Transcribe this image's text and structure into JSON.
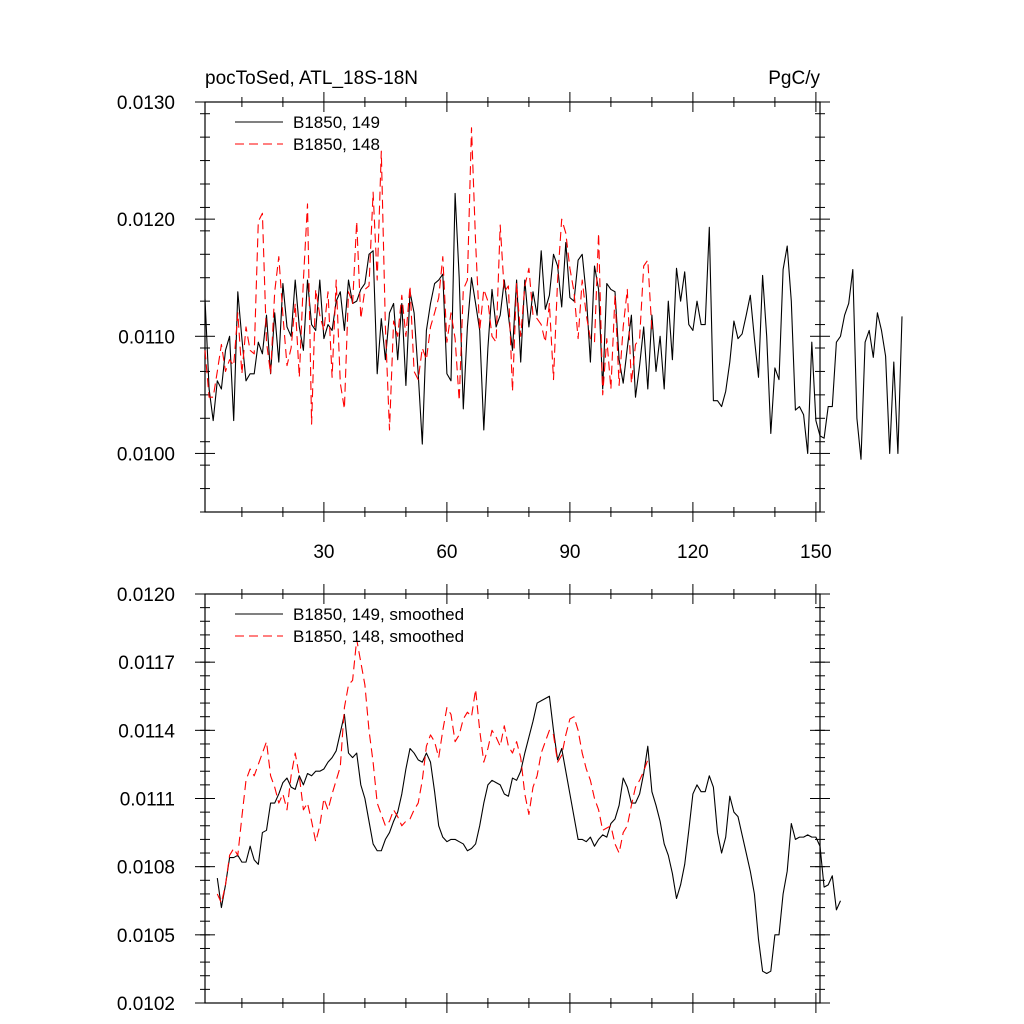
{
  "chart_data": [
    {
      "type": "line",
      "title_left": "pocToSed, ATL_18S-18N",
      "title_right": "PgC/y",
      "xlim": [
        1,
        151
      ],
      "ylim": [
        0.0095,
        0.013
      ],
      "xticks": [
        30,
        60,
        90,
        120,
        150
      ],
      "xtick_labels": [
        "30",
        "60",
        "90",
        "120",
        "150"
      ],
      "yticks": [
        0.01,
        0.011,
        0.012,
        0.013
      ],
      "ytick_labels": [
        "0.0100",
        "0.0110",
        "0.0120",
        "0.0130"
      ],
      "legend_position": "top-left",
      "series": [
        {
          "name": "B1850, 149",
          "color": "#000000",
          "dash": "solid",
          "x_start": 1,
          "values": [
            0.01132,
            0.01055,
            0.01028,
            0.01062,
            0.01055,
            0.01088,
            0.011,
            0.01028,
            0.01138,
            0.01098,
            0.01062,
            0.01068,
            0.01068,
            0.01095,
            0.01085,
            0.01118,
            0.01068,
            0.0112,
            0.01078,
            0.01145,
            0.01108,
            0.011,
            0.01148,
            0.01108,
            0.01088,
            0.01148,
            0.0111,
            0.01105,
            0.01148,
            0.01098,
            0.0111,
            0.01105,
            0.0113,
            0.01138,
            0.01105,
            0.01148,
            0.01128,
            0.0113,
            0.0114,
            0.01145,
            0.0117,
            0.01173,
            0.01068,
            0.01115,
            0.0108,
            0.0112,
            0.01128,
            0.0108,
            0.01128,
            0.01058,
            0.01138,
            0.0112,
            0.01068,
            0.01008,
            0.01105,
            0.01128,
            0.01145,
            0.01148,
            0.01153,
            0.01068,
            0.01062,
            0.01222,
            0.0115,
            0.01038,
            0.01108,
            0.0115,
            0.01128,
            0.01105,
            0.0102,
            0.0109,
            0.0114,
            0.01108,
            0.01118,
            0.01148,
            0.01118,
            0.01088,
            0.01148,
            0.01078,
            0.01148,
            0.01108,
            0.01138,
            0.01118,
            0.01173,
            0.01123,
            0.01135,
            0.0117,
            0.0116,
            0.01125,
            0.0118,
            0.01133,
            0.0113,
            0.01165,
            0.0117,
            0.01135,
            0.01078,
            0.0116,
            0.0114,
            0.01055,
            0.01145,
            0.0114,
            0.01138,
            0.0108,
            0.0106,
            0.0109,
            0.01118,
            0.01048,
            0.01075,
            0.01108,
            0.01055,
            0.01118,
            0.0107,
            0.011,
            0.01055,
            0.0113,
            0.0108,
            0.01158,
            0.0113,
            0.01155,
            0.0111,
            0.01105,
            0.0113,
            0.0111,
            0.0111,
            0.01193,
            0.01045,
            0.01045,
            0.0104,
            0.01053,
            0.01078,
            0.01113,
            0.01098,
            0.01102,
            0.01118,
            0.01135,
            0.01098,
            0.01065,
            0.01152,
            0.011,
            0.01017,
            0.01073,
            0.01063,
            0.01157,
            0.01177,
            0.0113,
            0.01037,
            0.0104,
            0.01033,
            0.01,
            0.01095,
            0.01028,
            0.01015,
            0.01013,
            0.0104,
            0.0104,
            0.01095,
            0.011,
            0.01118,
            0.01128,
            0.01157,
            0.0103,
            0.00995,
            0.01095,
            0.01105,
            0.01082,
            0.0112,
            0.01105,
            0.01083,
            0.01,
            0.01078,
            0.01,
            0.01117
          ]
        },
        {
          "name": "B1850, 148",
          "color": "#ff0000",
          "dash": "dashed",
          "x_start": 1,
          "values": [
            0.01088,
            0.01048,
            0.01048,
            0.0107,
            0.01093,
            0.0107,
            0.0108,
            0.01075,
            0.0112,
            0.01068,
            0.01108,
            0.01088,
            0.01085,
            0.01198,
            0.01205,
            0.01095,
            0.01068,
            0.01138,
            0.01168,
            0.01118,
            0.01075,
            0.0109,
            0.01128,
            0.01065,
            0.01148,
            0.01213,
            0.01025,
            0.0114,
            0.01118,
            0.01105,
            0.01138,
            0.01065,
            0.01148,
            0.0106,
            0.01038,
            0.01138,
            0.01128,
            0.01198,
            0.01115,
            0.0114,
            0.01143,
            0.01223,
            0.01148,
            0.01258,
            0.01108,
            0.0102,
            0.01113,
            0.011,
            0.01135,
            0.011,
            0.01143,
            0.0107,
            0.01063,
            0.0109,
            0.0108,
            0.01108,
            0.0112,
            0.01133,
            0.01168,
            0.01095,
            0.0112,
            0.01098,
            0.01045,
            0.0114,
            0.01148,
            0.01278,
            0.0118,
            0.01105,
            0.0114,
            0.0113,
            0.011,
            0.01095,
            0.01195,
            0.01138,
            0.01143,
            0.01053,
            0.01145,
            0.011,
            0.01143,
            0.01158,
            0.01118,
            0.01115,
            0.0111,
            0.01095,
            0.01128,
            0.01063,
            0.01148,
            0.012,
            0.01188,
            0.01158,
            0.01138,
            0.01098,
            0.01148,
            0.01118,
            0.01098,
            0.01095,
            0.01188,
            0.0105,
            0.01098,
            0.01055,
            0.01135,
            0.01058,
            0.01108,
            0.0114,
            0.0106,
            0.01093,
            0.01098,
            0.0116,
            0.01165,
            0.01105
          ]
        }
      ]
    },
    {
      "type": "line",
      "xlim": [
        1,
        151
      ],
      "ylim": [
        0.0102,
        0.012
      ],
      "xticks": [
        30,
        60,
        90,
        120,
        150
      ],
      "yticks": [
        0.0102,
        0.0105,
        0.0108,
        0.0111,
        0.0114,
        0.0117,
        0.012
      ],
      "ytick_labels": [
        "0.0102",
        "0.0105",
        "0.0108",
        "0.0111",
        "0.0114",
        "0.0117",
        "0.0120"
      ],
      "legend_position": "top-left",
      "series": [
        {
          "name": "B1850, 149, smoothed",
          "color": "#000000",
          "dash": "solid",
          "x_start": 4,
          "values": [
            0.01075,
            0.01062,
            0.01072,
            0.01084,
            0.01084,
            0.01085,
            0.01082,
            0.01082,
            0.01089,
            0.01083,
            0.01081,
            0.01095,
            0.01096,
            0.01108,
            0.01108,
            0.01112,
            0.01117,
            0.01119,
            0.01115,
            0.01114,
            0.0112,
            0.01116,
            0.01121,
            0.0112,
            0.01122,
            0.01122,
            0.01123,
            0.01126,
            0.01128,
            0.01131,
            0.01139,
            0.01147,
            0.0113,
            0.01128,
            0.0113,
            0.01116,
            0.0111,
            0.011,
            0.0109,
            0.01087,
            0.01087,
            0.01092,
            0.01095,
            0.011,
            0.01104,
            0.01112,
            0.01123,
            0.01132,
            0.0113,
            0.01127,
            0.01126,
            0.0113,
            0.01126,
            0.01113,
            0.01098,
            0.01093,
            0.01091,
            0.01092,
            0.01092,
            0.01091,
            0.0109,
            0.01087,
            0.01088,
            0.0109,
            0.01098,
            0.01108,
            0.01116,
            0.01118,
            0.01117,
            0.01116,
            0.01112,
            0.01111,
            0.01119,
            0.01118,
            0.01122,
            0.0113,
            0.01137,
            0.01144,
            0.01152,
            0.01153,
            0.01154,
            0.01155,
            0.0114,
            0.01127,
            0.01132,
            0.01122,
            0.01112,
            0.01102,
            0.01092,
            0.01092,
            0.01091,
            0.01093,
            0.01089,
            0.01092,
            0.01094,
            0.01093,
            0.01099,
            0.01101,
            0.01107,
            0.01119,
            0.01115,
            0.01108,
            0.01108,
            0.01112,
            0.01121,
            0.01133,
            0.01113,
            0.01107,
            0.011,
            0.0109,
            0.01085,
            0.01077,
            0.01066,
            0.01072,
            0.01081,
            0.01096,
            0.01112,
            0.01116,
            0.01113,
            0.01113,
            0.0112,
            0.01115,
            0.01095,
            0.01086,
            0.01093,
            0.01111,
            0.01104,
            0.01102,
            0.01094,
            0.01086,
            0.01078,
            0.01068,
            0.01048,
            0.01034,
            0.01033,
            0.01034,
            0.0105,
            0.0105,
            0.01068,
            0.01078,
            0.01099,
            0.01092,
            0.01093,
            0.01093,
            0.01094,
            0.01093,
            0.01093,
            0.01089,
            0.01071,
            0.01072,
            0.01076,
            0.01061,
            0.01065
          ]
        },
        {
          "name": "B1850, 148, smoothed",
          "color": "#ff0000",
          "dash": "dashed",
          "x_start": 4,
          "values": [
            0.01068,
            0.01064,
            0.01072,
            0.01085,
            0.01088,
            0.01085,
            0.01102,
            0.01118,
            0.01123,
            0.0112,
            0.01125,
            0.0113,
            0.01135,
            0.0112,
            0.01115,
            0.01108,
            0.01112,
            0.01105,
            0.0112,
            0.0113,
            0.0112,
            0.01105,
            0.01108,
            0.011,
            0.01091,
            0.01098,
            0.0111,
            0.01105,
            0.01112,
            0.01118,
            0.01124,
            0.0115,
            0.0116,
            0.01162,
            0.0118,
            0.0117,
            0.0116,
            0.0114,
            0.01126,
            0.01108,
            0.01103,
            0.01098,
            0.011,
            0.01105,
            0.01102,
            0.01098,
            0.011,
            0.01101,
            0.01105,
            0.01108,
            0.01118,
            0.01133,
            0.01138,
            0.01135,
            0.01128,
            0.0114,
            0.0115,
            0.01147,
            0.01135,
            0.01138,
            0.01145,
            0.01148,
            0.01146,
            0.01158,
            0.0114,
            0.01126,
            0.01132,
            0.0114,
            0.01137,
            0.01133,
            0.01142,
            0.01133,
            0.0113,
            0.01135,
            0.01128,
            0.01112,
            0.01103,
            0.01115,
            0.0112,
            0.0113,
            0.01135,
            0.0114,
            0.01138,
            0.01126,
            0.01129,
            0.01138,
            0.01145,
            0.01146,
            0.0114,
            0.0113,
            0.01123,
            0.01118,
            0.0111,
            0.01105,
            0.01096,
            0.01097,
            0.01098,
            0.0109,
            0.01086,
            0.01095,
            0.01098,
            0.01107,
            0.01115,
            0.01118,
            0.01122,
            0.01127
          ]
        }
      ]
    }
  ]
}
